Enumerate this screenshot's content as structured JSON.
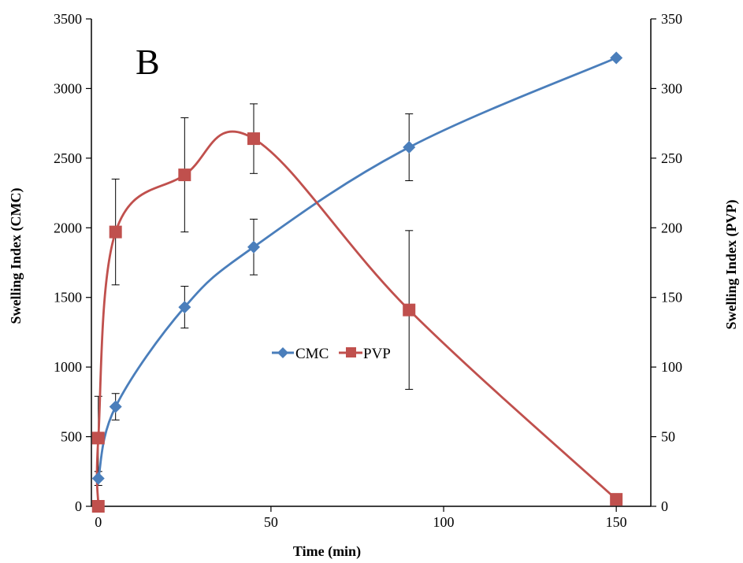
{
  "chart_data": {
    "type": "line",
    "panel_label": "B",
    "xlabel": "Time (min)",
    "ylabel_left": "Swelling Index (CMC)",
    "ylabel_right": "Swelling Index (PVP)",
    "xlim": [
      -2,
      160
    ],
    "ylim_left": [
      0,
      3500
    ],
    "ylim_right": [
      0,
      350
    ],
    "x_ticks": [
      0,
      50,
      100,
      150
    ],
    "y_ticks_left": [
      0,
      500,
      1000,
      1500,
      2000,
      2500,
      3000,
      3500
    ],
    "y_ticks_right": [
      0,
      50,
      100,
      150,
      200,
      250,
      300,
      350
    ],
    "grid": false,
    "legend_position": "center",
    "series": [
      {
        "name": "CMC",
        "axis": "left",
        "marker": "diamond",
        "color": "#4a7ebb",
        "x": [
          0,
          5,
          25,
          45,
          90,
          150
        ],
        "y": [
          200,
          715,
          1430,
          1862,
          2578,
          3220
        ],
        "error": [
          50,
          95,
          150,
          200,
          240,
          0
        ]
      },
      {
        "name": "PVP",
        "axis": "right",
        "marker": "square",
        "color": "#c0504d",
        "x": [
          0,
          0,
          5,
          25,
          45,
          90,
          150
        ],
        "y": [
          0,
          49,
          197,
          238,
          264,
          141,
          5
        ],
        "error": [
          0,
          30,
          38,
          41,
          25,
          57,
          0
        ]
      }
    ]
  }
}
